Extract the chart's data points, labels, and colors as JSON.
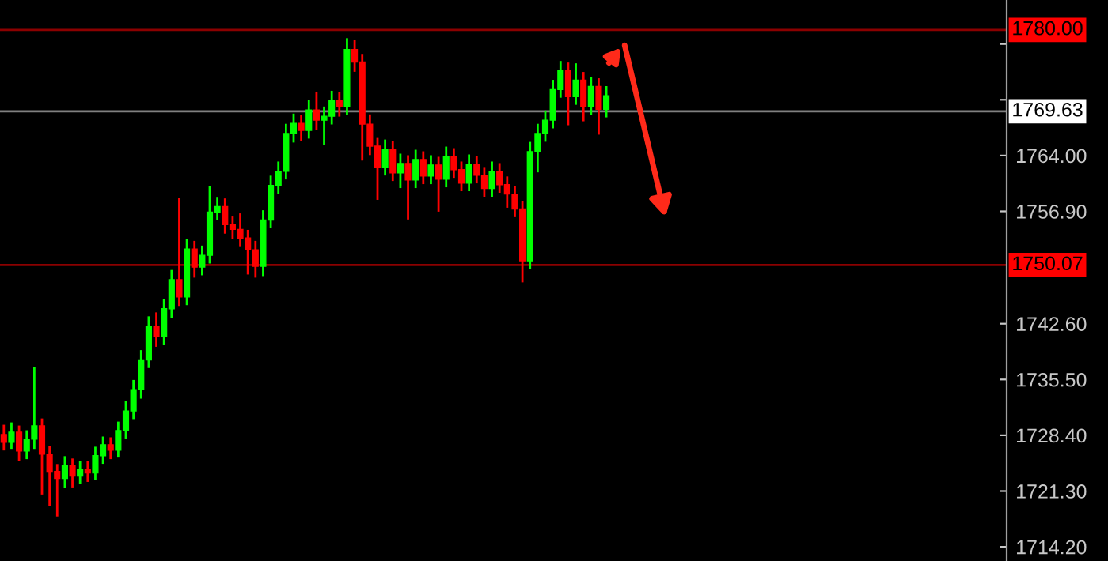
{
  "chart_data": {
    "type": "candlestick",
    "categories": [
      null,
      null,
      null,
      null,
      null,
      null,
      null,
      null,
      null,
      null,
      null,
      null,
      null,
      null,
      null,
      null,
      null,
      null,
      null,
      null,
      null,
      null,
      null,
      null,
      null,
      null,
      null,
      null,
      null,
      null,
      null,
      null,
      null,
      null,
      null,
      null,
      null,
      null,
      null,
      null,
      null,
      null,
      null,
      null,
      null,
      null,
      null,
      null,
      null,
      null,
      null,
      null,
      null,
      null,
      null,
      null,
      null,
      null,
      null,
      null,
      null,
      null,
      null,
      null,
      null,
      null,
      null,
      null,
      null,
      null,
      null,
      null,
      null,
      null,
      null,
      null,
      null,
      null,
      null,
      null,
      null,
      null,
      null,
      null,
      null,
      null,
      null,
      null,
      null,
      null,
      null,
      null,
      null,
      null,
      null,
      null,
      null,
      null,
      null,
      null,
      null,
      null,
      null,
      null,
      null,
      null,
      null,
      null,
      null,
      null,
      null,
      null,
      null,
      null,
      null,
      null,
      null,
      null,
      null,
      null,
      null,
      null,
      null,
      null,
      null,
      null,
      null,
      null,
      null,
      null,
      null,
      null
    ],
    "ohlc": [
      [
        1728.5,
        1729.6,
        1726.6,
        1727.5
      ],
      [
        1727.5,
        1729.9,
        1726.8,
        1728.8
      ],
      [
        1728.8,
        1729.5,
        1725.3,
        1726.4
      ],
      [
        1726.4,
        1728.9,
        1725.5,
        1727.9
      ],
      [
        1727.9,
        1737.0,
        1726.8,
        1729.6
      ],
      [
        1729.6,
        1730.4,
        1721.0,
        1726.0
      ],
      [
        1726.0,
        1726.9,
        1719.5,
        1723.8
      ],
      [
        1723.8,
        1724.6,
        1718.2,
        1722.9
      ],
      [
        1722.9,
        1725.6,
        1721.8,
        1724.5
      ],
      [
        1724.5,
        1725.3,
        1721.9,
        1723.2
      ],
      [
        1723.2,
        1725.0,
        1722.3,
        1724.1
      ],
      [
        1724.1,
        1725.0,
        1722.6,
        1723.6
      ],
      [
        1723.6,
        1726.8,
        1722.8,
        1725.8
      ],
      [
        1725.8,
        1728.1,
        1724.9,
        1727.2
      ],
      [
        1727.2,
        1728.0,
        1725.5,
        1726.5
      ],
      [
        1726.5,
        1730.0,
        1725.7,
        1729.0
      ],
      [
        1729.0,
        1732.6,
        1728.1,
        1731.5
      ],
      [
        1731.5,
        1735.3,
        1730.6,
        1734.2
      ],
      [
        1734.2,
        1739.1,
        1733.2,
        1738.0
      ],
      [
        1738.0,
        1743.4,
        1737.1,
        1742.3
      ],
      [
        1742.3,
        1743.9,
        1739.8,
        1741.0
      ],
      [
        1741.0,
        1745.6,
        1740.0,
        1744.5
      ],
      [
        1744.5,
        1749.3,
        1743.5,
        1748.2
      ],
      [
        1748.2,
        1758.5,
        1745.0,
        1746.0
      ],
      [
        1746.0,
        1753.2,
        1745.1,
        1752.1
      ],
      [
        1752.1,
        1753.0,
        1748.6,
        1749.8
      ],
      [
        1749.8,
        1752.4,
        1748.9,
        1751.3
      ],
      [
        1751.3,
        1760.0,
        1750.4,
        1756.8
      ],
      [
        1756.8,
        1758.6,
        1755.9,
        1757.5
      ],
      [
        1757.5,
        1758.4,
        1754.2,
        1755.2
      ],
      [
        1755.2,
        1756.1,
        1753.5,
        1754.6
      ],
      [
        1754.6,
        1756.5,
        1752.6,
        1753.5
      ],
      [
        1753.5,
        1754.4,
        1749.0,
        1752.0
      ],
      [
        1752.0,
        1753.0,
        1748.6,
        1749.9
      ],
      [
        1749.9,
        1756.9,
        1748.8,
        1755.8
      ],
      [
        1755.8,
        1761.3,
        1754.9,
        1760.2
      ],
      [
        1760.2,
        1763.1,
        1759.3,
        1762.0
      ],
      [
        1762.0,
        1767.9,
        1761.1,
        1766.8
      ],
      [
        1766.8,
        1769.2,
        1765.8,
        1768.1
      ],
      [
        1768.1,
        1769.0,
        1766.0,
        1767.2
      ],
      [
        1767.2,
        1770.9,
        1766.3,
        1769.8
      ],
      [
        1769.8,
        1772.0,
        1767.4,
        1768.5
      ],
      [
        1768.5,
        1770.1,
        1765.5,
        1769.0
      ],
      [
        1769.0,
        1772.1,
        1768.1,
        1771.0
      ],
      [
        1771.0,
        1771.9,
        1769.1,
        1770.2
      ],
      [
        1770.2,
        1778.8,
        1769.3,
        1777.5
      ],
      [
        1777.5,
        1778.6,
        1774.8,
        1775.9
      ],
      [
        1775.9,
        1776.8,
        1763.5,
        1768.0
      ],
      [
        1768.0,
        1769.1,
        1764.2,
        1765.2
      ],
      [
        1765.2,
        1766.1,
        1758.5,
        1762.5
      ],
      [
        1762.5,
        1765.9,
        1761.6,
        1764.8
      ],
      [
        1764.8,
        1765.7,
        1760.9,
        1761.8
      ],
      [
        1761.8,
        1764.1,
        1760.0,
        1763.0
      ],
      [
        1763.0,
        1763.9,
        1756.0,
        1760.9
      ],
      [
        1760.9,
        1764.6,
        1760.0,
        1763.5
      ],
      [
        1763.5,
        1764.4,
        1760.5,
        1761.4
      ],
      [
        1761.4,
        1763.9,
        1760.5,
        1762.8
      ],
      [
        1762.8,
        1763.7,
        1757.0,
        1761.0
      ],
      [
        1761.0,
        1765.0,
        1760.1,
        1763.9
      ],
      [
        1763.9,
        1764.8,
        1761.3,
        1762.2
      ],
      [
        1762.2,
        1763.1,
        1759.6,
        1760.5
      ],
      [
        1760.5,
        1764.0,
        1759.6,
        1762.9
      ],
      [
        1762.9,
        1763.8,
        1760.6,
        1761.5
      ],
      [
        1761.5,
        1762.4,
        1758.9,
        1759.8
      ],
      [
        1759.8,
        1763.1,
        1758.9,
        1762.0
      ],
      [
        1762.0,
        1762.9,
        1759.4,
        1760.3
      ],
      [
        1760.3,
        1761.2,
        1757.5,
        1759.1
      ],
      [
        1759.1,
        1760.0,
        1756.3,
        1757.2
      ],
      [
        1757.2,
        1758.1,
        1748.0,
        1750.6
      ],
      [
        1750.6,
        1765.6,
        1749.7,
        1764.5
      ],
      [
        1764.5,
        1767.9,
        1762.0,
        1766.8
      ],
      [
        1766.8,
        1769.6,
        1765.9,
        1768.5
      ],
      [
        1768.5,
        1773.5,
        1767.6,
        1772.4
      ],
      [
        1772.4,
        1775.9,
        1771.5,
        1774.8
      ],
      [
        1774.8,
        1775.7,
        1768.0,
        1771.5
      ],
      [
        1771.5,
        1775.6,
        1770.6,
        1773.6
      ],
      [
        1773.6,
        1774.5,
        1768.5,
        1770.2
      ],
      [
        1770.2,
        1773.9,
        1769.3,
        1772.8
      ],
      [
        1772.8,
        1773.7,
        1766.8,
        1769.9
      ],
      [
        1769.9,
        1772.7,
        1769.0,
        1771.6
      ],
      null,
      null,
      null,
      null,
      null,
      null,
      null,
      null,
      null,
      null,
      null,
      null,
      null,
      null,
      null,
      null,
      null,
      null,
      null,
      null,
      null,
      null,
      null,
      null,
      null,
      null,
      null,
      null,
      null,
      null,
      null,
      null,
      null,
      null,
      null,
      null,
      null,
      null,
      null,
      null,
      null,
      null,
      null,
      null,
      null,
      null,
      null,
      null,
      null,
      null,
      null,
      null
    ],
    "colors": [
      "#ff0000",
      "#00ff00",
      "#ff0000",
      "#00ff00",
      "#00ff00",
      "#ff0000",
      "#ff0000",
      "#ff0000",
      "#00ff00",
      "#ff0000",
      "#00ff00",
      "#ff0000",
      "#00ff00",
      "#00ff00",
      "#ff0000",
      "#00ff00",
      "#00ff00",
      "#00ff00",
      "#00ff00",
      "#00ff00",
      "#ff0000",
      "#00ff00",
      "#00ff00",
      "#ff0000",
      "#00ff00",
      "#ff0000",
      "#00ff00",
      "#00ff00",
      "#00ff00",
      "#ff0000",
      "#ff0000",
      "#ff0000",
      "#ff0000",
      "#ff0000",
      "#00ff00",
      "#00ff00",
      "#00ff00",
      "#00ff00",
      "#00ff00",
      "#ff0000",
      "#00ff00",
      "#ff0000",
      "#00ff00",
      "#00ff00",
      "#ff0000",
      "#00ff00",
      "#ff0000",
      "#ff0000",
      "#ff0000",
      "#ff0000",
      "#00ff00",
      "#ff0000",
      "#00ff00",
      "#ff0000",
      "#00ff00",
      "#ff0000",
      "#00ff00",
      "#ff0000",
      "#00ff00",
      "#ff0000",
      "#ff0000",
      "#00ff00",
      "#ff0000",
      "#ff0000",
      "#00ff00",
      "#ff0000",
      "#ff0000",
      "#ff0000",
      "#ff0000",
      "#00ff00",
      "#00ff00",
      "#00ff00",
      "#00ff00",
      "#00ff00",
      "#ff0000",
      "#00ff00",
      "#ff0000",
      "#00ff00",
      "#ff0000",
      "#00ff00",
      null,
      null,
      null,
      null,
      null,
      null,
      null,
      null,
      null,
      null,
      null,
      null,
      null,
      null,
      null,
      null,
      null,
      null,
      null,
      null,
      null,
      null,
      null,
      null,
      null,
      null,
      null,
      null,
      null,
      null,
      null,
      null,
      null,
      null,
      null,
      null,
      null,
      null,
      null,
      null,
      null,
      null,
      null,
      null,
      null,
      null,
      null,
      null,
      null,
      null,
      null,
      null
    ],
    "ylim": [
      1712.4,
      1783.8
    ],
    "yticks": [
      {
        "value": 1714.2,
        "label": "1714.20"
      },
      {
        "value": 1721.3,
        "label": "1721.30"
      },
      {
        "value": 1728.4,
        "label": "1728.40"
      },
      {
        "value": 1735.5,
        "label": "1735.50"
      },
      {
        "value": 1742.6,
        "label": "1742.60"
      },
      {
        "value": 1756.9,
        "label": "1756.90"
      },
      {
        "value": 1764.0,
        "label": "1764.00"
      },
      {
        "value": 1771.1,
        "label": null
      },
      {
        "value": 1778.2,
        "label": null
      }
    ],
    "ref_lines": [
      {
        "axis": "y",
        "value": 1780.0,
        "label": "1780.00",
        "color": "#8b0000"
      },
      {
        "axis": "y",
        "value": 1769.63,
        "label": "1769.63",
        "color": "#808080"
      },
      {
        "axis": "y",
        "value": 1750.07,
        "label": "1750.07",
        "color": "#8b0000"
      }
    ],
    "grid": false
  }
}
